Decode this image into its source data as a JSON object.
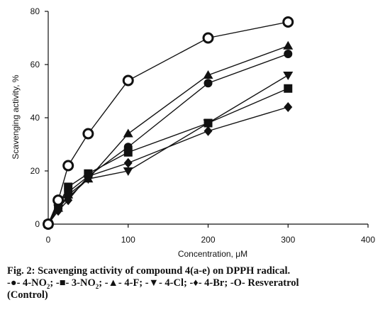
{
  "chart_data": {
    "type": "line",
    "xlabel": "Concentration, μM",
    "ylabel": "Scavenging activity, %",
    "xlim": [
      0,
      400
    ],
    "ylim": [
      0,
      80
    ],
    "xticks": [
      0,
      100,
      200,
      300,
      400
    ],
    "yticks": [
      0,
      20,
      40,
      60,
      80
    ],
    "grid": false,
    "series": [
      {
        "name": "4-NO2",
        "marker": "circle-filled",
        "x": [
          0,
          12.5,
          25,
          50,
          100,
          200,
          300
        ],
        "y": [
          0,
          8,
          12,
          18,
          29,
          53,
          64
        ]
      },
      {
        "name": "3-NO2",
        "marker": "square",
        "x": [
          0,
          12.5,
          25,
          50,
          100,
          200,
          300
        ],
        "y": [
          0,
          7,
          14,
          19,
          27,
          38,
          51
        ]
      },
      {
        "name": "4-F",
        "marker": "triangle-up",
        "x": [
          0,
          12.5,
          25,
          50,
          100,
          200,
          300
        ],
        "y": [
          0,
          6,
          11,
          17,
          34,
          56,
          67
        ]
      },
      {
        "name": "4-Cl",
        "marker": "triangle-down",
        "x": [
          0,
          12.5,
          25,
          50,
          100,
          200,
          300
        ],
        "y": [
          0,
          6,
          10,
          17,
          20,
          38,
          56
        ]
      },
      {
        "name": "4-Br",
        "marker": "diamond",
        "x": [
          0,
          12.5,
          25,
          50,
          100,
          200,
          300
        ],
        "y": [
          0,
          5,
          9,
          18,
          23,
          35,
          44
        ]
      },
      {
        "name": "Resveratrol (Control)",
        "marker": "circle-open",
        "x": [
          0,
          12.5,
          25,
          50,
          100,
          200,
          300
        ],
        "y": [
          0,
          9,
          22,
          34,
          54,
          70,
          76
        ]
      }
    ]
  },
  "caption": {
    "title": "Fig. 2: Scavenging activity of compound 4(a-e) on DPPH radical.",
    "legend": [
      {
        "symbol": "-●-",
        "label": "4-NO",
        "sub": "2",
        "sep": ";"
      },
      {
        "symbol": "-■-",
        "label": "3-NO",
        "sub": "2",
        "sep": ";"
      },
      {
        "symbol": "-▲-",
        "label": "4-F",
        "sub": "",
        "sep": ";"
      },
      {
        "symbol": "-▼-",
        "label": "4-Cl",
        "sub": "",
        "sep": ";"
      },
      {
        "symbol": "-♦-",
        "label": "4-Br",
        "sub": "",
        "sep": ";"
      },
      {
        "symbol": "-O-",
        "label": "Resveratrol",
        "sub": "",
        "sep": ""
      }
    ],
    "legend_tail": "(Control)"
  }
}
